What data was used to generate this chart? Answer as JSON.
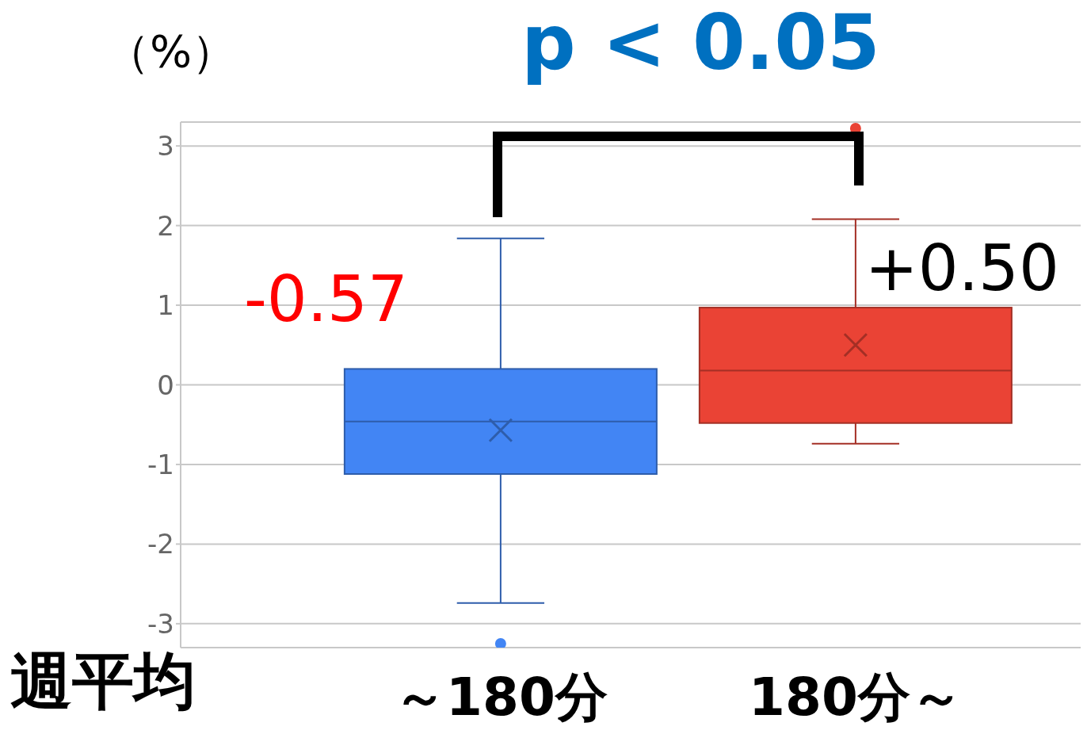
{
  "chart_data": {
    "type": "box",
    "categories": [
      "～180分",
      "180分～"
    ],
    "boxes": [
      {
        "low": -2.74,
        "q1": -1.12,
        "median": -0.46,
        "q3": 0.2,
        "high": 1.84,
        "mean": -0.57,
        "outliers": [
          -3.25
        ]
      },
      {
        "low": -0.74,
        "q1": -0.48,
        "median": 0.18,
        "q3": 0.97,
        "high": 2.08,
        "mean": 0.5,
        "outliers": [
          3.22
        ]
      }
    ],
    "colors": [
      "#4285f4",
      "#ea4335"
    ],
    "xlabel": "週平均",
    "ylabel": "（%）",
    "ylim": [
      -3.3,
      3.3
    ],
    "yticks": [
      -3,
      -2,
      -1,
      0,
      1,
      2,
      3
    ],
    "grid": "y",
    "annotations": [
      "p < 0.05",
      "-0.57",
      "+0.50"
    ]
  }
}
